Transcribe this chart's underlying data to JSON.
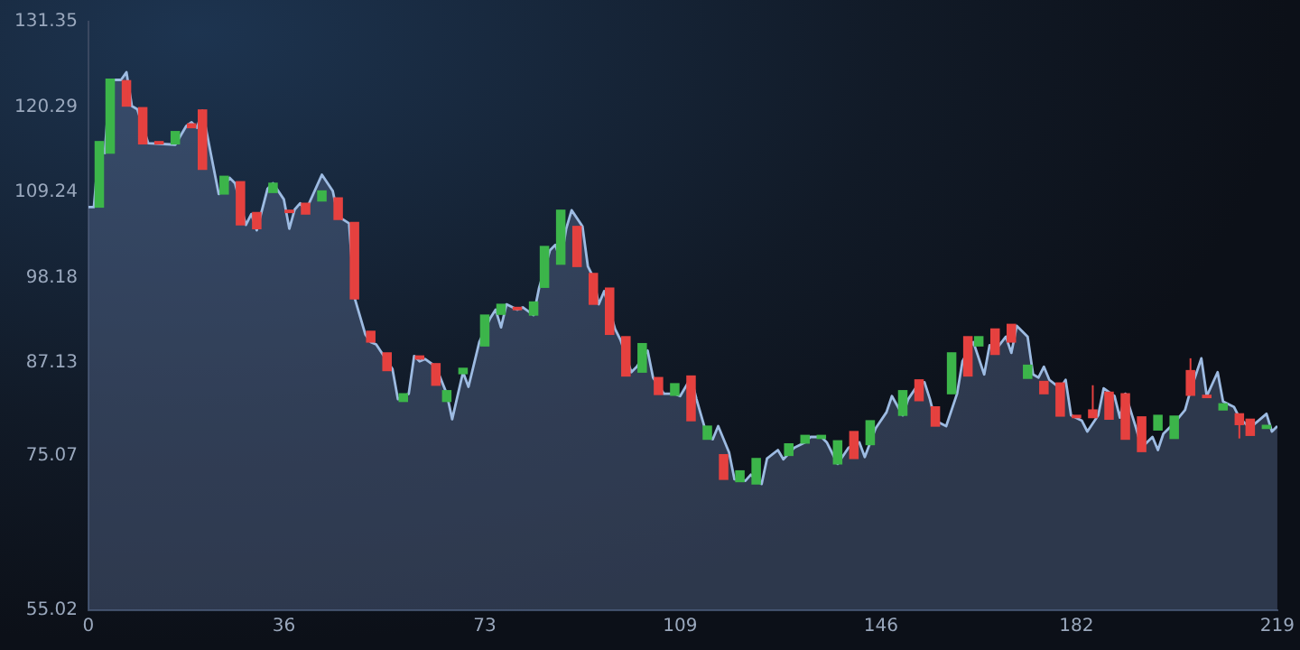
{
  "chart_data": {
    "type": "candlestick",
    "xlim": [
      0,
      219
    ],
    "xticks": [
      0,
      36,
      73,
      109,
      146,
      182,
      219
    ],
    "ylim": [
      55.02,
      131.35
    ],
    "yticks": [
      55.02,
      75.07,
      87.13,
      98.18,
      109.24,
      120.29,
      131.35
    ],
    "series": [
      {
        "type": "area",
        "color": "#9dbbe2",
        "x": [
          0,
          1,
          2,
          3,
          4,
          6,
          7,
          8,
          9,
          11,
          16,
          18,
          19,
          20,
          21,
          23,
          24,
          26,
          27,
          29,
          30,
          31,
          33,
          34,
          36,
          37,
          38,
          39,
          40,
          43,
          45,
          46,
          48,
          49,
          51,
          52,
          53,
          56,
          57,
          59,
          60,
          61,
          62,
          64,
          66,
          67,
          69,
          70,
          72,
          74,
          75,
          76,
          77,
          79,
          80,
          82,
          83,
          85,
          86,
          87,
          88,
          89,
          91,
          92,
          93,
          94,
          95,
          97,
          98,
          100,
          101,
          103,
          104,
          106,
          108,
          109,
          111,
          112,
          114,
          115,
          116,
          118,
          119,
          121,
          122,
          124,
          125,
          127,
          128,
          130,
          132,
          133,
          135,
          136,
          138,
          140,
          142,
          143,
          145,
          147,
          148,
          150,
          151,
          153,
          154,
          155,
          156,
          158,
          160,
          161,
          163,
          165,
          166,
          167,
          169,
          170,
          171,
          173,
          174,
          175,
          176,
          177,
          179,
          180,
          181,
          183,
          184,
          186,
          187,
          189,
          190,
          191,
          193,
          194,
          196,
          197,
          198,
          200,
          202,
          203,
          205,
          206,
          208,
          209,
          211,
          212,
          214,
          215,
          217,
          218,
          219
        ],
        "values": [
          107.3,
          107.3,
          115.6,
          114.3,
          123.8,
          123.8,
          124.8,
          120.4,
          120.0,
          115.6,
          115.4,
          117.8,
          118.3,
          117.6,
          119.8,
          112.6,
          109.0,
          111.1,
          110.4,
          105.0,
          106.4,
          104.3,
          109.7,
          110.4,
          108.3,
          104.5,
          107.0,
          107.8,
          106.8,
          111.5,
          109.4,
          106.1,
          105.2,
          95.6,
          90.8,
          89.8,
          89.5,
          86.3,
          82.4,
          83.1,
          88.0,
          87.3,
          87.6,
          86.6,
          83.1,
          79.8,
          85.9,
          84.0,
          89.8,
          92.9,
          94.0,
          91.7,
          94.7,
          94.0,
          94.3,
          93.3,
          96.8,
          101.7,
          102.4,
          100.3,
          104.5,
          106.9,
          104.8,
          99.6,
          98.2,
          94.7,
          96.4,
          91.5,
          90.1,
          85.9,
          86.6,
          88.7,
          85.2,
          83.1,
          83.1,
          82.8,
          85.2,
          82.4,
          77.5,
          77.2,
          78.9,
          75.5,
          72.0,
          71.8,
          72.6,
          71.4,
          74.7,
          75.8,
          74.6,
          76.1,
          76.8,
          77.5,
          77.5,
          76.8,
          74.0,
          76.1,
          76.8,
          74.9,
          78.6,
          80.7,
          82.8,
          80.3,
          82.4,
          84.5,
          84.6,
          82.4,
          79.6,
          78.9,
          83.1,
          87.3,
          89.8,
          85.6,
          89.4,
          88.7,
          90.5,
          88.4,
          91.9,
          90.5,
          85.6,
          85.2,
          86.6,
          84.9,
          83.8,
          84.9,
          80.3,
          79.6,
          78.2,
          80.3,
          83.8,
          82.8,
          80.0,
          83.1,
          78.6,
          76.1,
          77.5,
          75.8,
          77.9,
          79.3,
          81.0,
          83.5,
          87.7,
          82.8,
          85.9,
          82.1,
          81.4,
          80.0,
          78.6,
          79.3,
          80.5,
          78.2,
          78.9
        ]
      },
      {
        "type": "candlestick",
        "x": [
          2,
          4,
          7,
          10,
          13,
          16,
          19,
          21,
          25,
          28,
          31,
          34,
          37,
          40,
          43,
          46,
          49,
          52,
          55,
          58,
          61,
          64,
          66,
          69,
          73,
          76,
          79,
          82,
          84,
          87,
          90,
          93,
          96,
          99,
          102,
          105,
          108,
          111,
          114,
          117,
          120,
          123,
          129,
          132,
          135,
          138,
          141,
          144,
          150,
          153,
          156,
          159,
          162,
          164,
          167,
          170,
          173,
          176,
          179,
          182,
          185,
          188,
          191,
          194,
          197,
          200,
          203,
          206,
          209,
          212,
          214,
          217
        ],
        "ohlc": [
          [
            107.3,
            115.8,
            107.3,
            115.8
          ],
          [
            114.3,
            123.9,
            114.3,
            123.9
          ],
          [
            123.7,
            123.7,
            120.4,
            120.4
          ],
          [
            120.2,
            120.2,
            115.5,
            115.5
          ],
          [
            115.8,
            115.8,
            115.5,
            115.5
          ],
          [
            115.5,
            117.1,
            115.5,
            117.1
          ],
          [
            118.1,
            118.1,
            117.6,
            117.6
          ],
          [
            119.9,
            119.9,
            112.2,
            112.2
          ],
          [
            109.0,
            111.3,
            109.0,
            111.3
          ],
          [
            110.6,
            110.6,
            105.0,
            105.0
          ],
          [
            106.6,
            106.6,
            104.5,
            104.5
          ],
          [
            109.2,
            110.4,
            109.2,
            110.4
          ],
          [
            106.9,
            106.9,
            106.6,
            106.6
          ],
          [
            107.8,
            107.8,
            106.4,
            106.4
          ],
          [
            108.1,
            109.4,
            108.1,
            109.4
          ],
          [
            108.5,
            108.5,
            105.7,
            105.7
          ],
          [
            105.3,
            105.3,
            95.4,
            95.4
          ],
          [
            91.2,
            91.2,
            89.8,
            89.8
          ],
          [
            88.4,
            88.4,
            86.1,
            86.1
          ],
          [
            82.1,
            83.1,
            82.1,
            83.1
          ],
          [
            88.0,
            88.0,
            87.6,
            87.6
          ],
          [
            87.0,
            87.0,
            84.2,
            84.2
          ],
          [
            82.1,
            83.5,
            82.1,
            83.5
          ],
          [
            85.7,
            86.4,
            85.7,
            86.4
          ],
          [
            89.3,
            93.3,
            89.3,
            93.3
          ],
          [
            93.4,
            94.7,
            93.4,
            94.7
          ],
          [
            94.3,
            94.3,
            94.0,
            94.0
          ],
          [
            93.3,
            95.0,
            93.3,
            95.0
          ],
          [
            96.9,
            102.2,
            96.9,
            102.2
          ],
          [
            99.9,
            106.9,
            99.9,
            106.9
          ],
          [
            104.8,
            104.8,
            99.6,
            99.6
          ],
          [
            98.7,
            98.7,
            94.7,
            94.7
          ],
          [
            96.8,
            96.8,
            90.8,
            90.8
          ],
          [
            90.5,
            90.5,
            85.4,
            85.4
          ],
          [
            85.9,
            89.6,
            85.9,
            89.6
          ],
          [
            85.2,
            85.2,
            83.0,
            83.0
          ],
          [
            82.9,
            84.4,
            82.9,
            84.4
          ],
          [
            85.4,
            85.4,
            79.6,
            79.6
          ],
          [
            77.2,
            78.9,
            77.2,
            78.9
          ],
          [
            75.2,
            75.2,
            72.0,
            72.0
          ],
          [
            71.7,
            73.1,
            71.7,
            73.1
          ],
          [
            71.4,
            74.7,
            71.4,
            74.7
          ],
          [
            75.1,
            76.6,
            75.1,
            76.6
          ],
          [
            76.7,
            77.7,
            76.7,
            77.7
          ],
          [
            77.3,
            77.7,
            77.3,
            77.7
          ],
          [
            74.0,
            77.0,
            74.0,
            77.0
          ],
          [
            78.2,
            78.2,
            74.7,
            74.7
          ],
          [
            76.5,
            79.6,
            76.5,
            79.6
          ],
          [
            80.3,
            83.5,
            80.3,
            83.5
          ],
          [
            84.9,
            84.9,
            82.2,
            82.2
          ],
          [
            81.4,
            81.4,
            78.9,
            78.9
          ],
          [
            83.1,
            88.4,
            83.1,
            88.4
          ],
          [
            90.5,
            90.5,
            85.4,
            85.4
          ],
          [
            89.3,
            90.5,
            89.3,
            90.5
          ],
          [
            91.5,
            91.5,
            88.2,
            88.2
          ],
          [
            92.1,
            92.1,
            89.8,
            89.8
          ],
          [
            85.1,
            86.8,
            85.1,
            86.8
          ],
          [
            84.7,
            84.7,
            83.1,
            83.1
          ],
          [
            84.5,
            84.5,
            80.2,
            80.2
          ],
          [
            80.3,
            80.3,
            80.0,
            80.0
          ],
          [
            81.0,
            84.2,
            80.0,
            80.0
          ],
          [
            83.3,
            83.3,
            79.8,
            79.8
          ],
          [
            83.1,
            83.1,
            77.2,
            77.2
          ],
          [
            80.1,
            80.1,
            75.6,
            75.6
          ],
          [
            78.4,
            80.3,
            78.4,
            80.3
          ],
          [
            77.3,
            80.2,
            77.3,
            80.2
          ],
          [
            86.1,
            87.7,
            82.9,
            82.9
          ],
          [
            82.9,
            82.9,
            82.6,
            82.6
          ],
          [
            81.0,
            81.8,
            81.0,
            81.8
          ],
          [
            80.5,
            80.5,
            77.3,
            79.1
          ],
          [
            79.8,
            79.8,
            77.7,
            77.7
          ],
          [
            78.6,
            79.0,
            78.6,
            79.0
          ]
        ],
        "colors": [
          "#3cb54a",
          "#3cb54a",
          "#e5413f",
          "#e5413f",
          "#e5413f",
          "#3cb54a",
          "#e5413f",
          "#e5413f",
          "#3cb54a",
          "#e5413f",
          "#e5413f",
          "#3cb54a",
          "#e5413f",
          "#e5413f",
          "#3cb54a",
          "#e5413f",
          "#e5413f",
          "#e5413f",
          "#e5413f",
          "#3cb54a",
          "#e5413f",
          "#e5413f",
          "#3cb54a",
          "#3cb54a",
          "#3cb54a",
          "#3cb54a",
          "#e5413f",
          "#3cb54a",
          "#3cb54a",
          "#3cb54a",
          "#e5413f",
          "#e5413f",
          "#e5413f",
          "#e5413f",
          "#3cb54a",
          "#e5413f",
          "#3cb54a",
          "#e5413f",
          "#3cb54a",
          "#e5413f",
          "#3cb54a",
          "#3cb54a",
          "#3cb54a",
          "#3cb54a",
          "#3cb54a",
          "#3cb54a",
          "#e5413f",
          "#3cb54a",
          "#3cb54a",
          "#e5413f",
          "#e5413f",
          "#3cb54a",
          "#e5413f",
          "#3cb54a",
          "#e5413f",
          "#e5413f",
          "#3cb54a",
          "#e5413f",
          "#e5413f",
          "#e5413f",
          "#e5413f",
          "#e5413f",
          "#e5413f",
          "#e5413f",
          "#3cb54a",
          "#3cb54a",
          "#e5413f",
          "#e5413f",
          "#3cb54a",
          "#e5413f",
          "#e5413f",
          "#3cb54a"
        ]
      }
    ]
  }
}
